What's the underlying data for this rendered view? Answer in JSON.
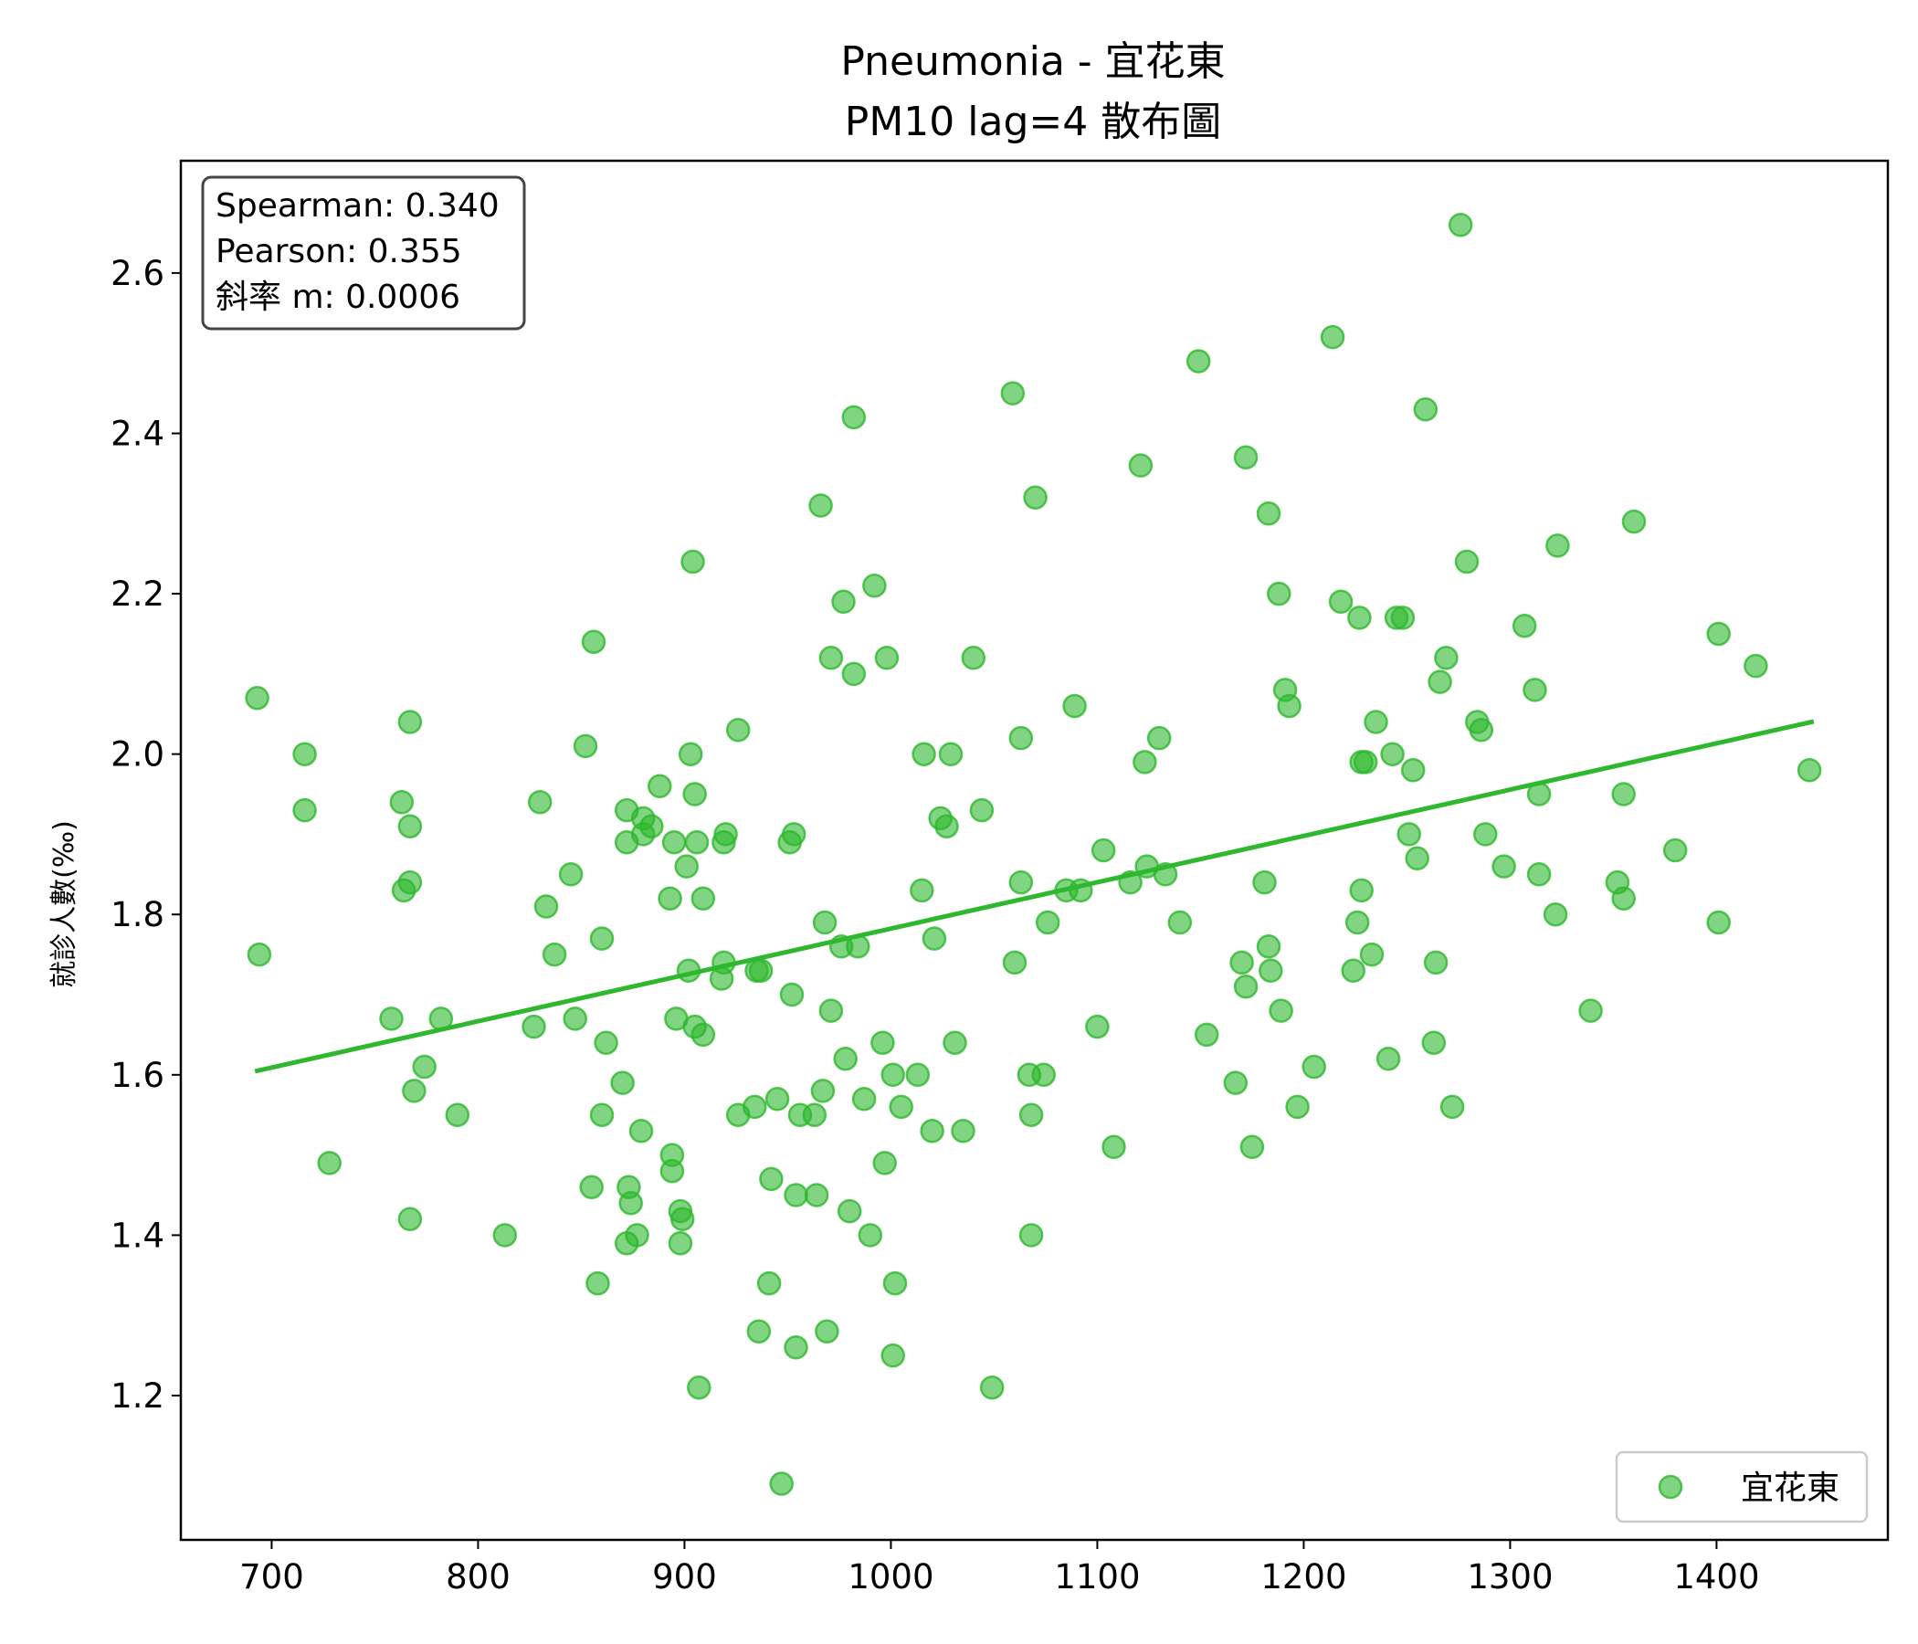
{
  "chart_data": {
    "type": "scatter",
    "title": [
      "Pneumonia - 宜花東",
      "PM10 lag=4 散布圖"
    ],
    "xlabel": "",
    "ylabel": "就診人數(‰)",
    "xlim": [
      656,
      1483
    ],
    "ylim": [
      1.02,
      2.74
    ],
    "x_ticks": [
      700,
      800,
      900,
      1000,
      1100,
      1200,
      1300,
      1400
    ],
    "y_ticks": [
      1.2,
      1.4,
      1.6,
      1.8,
      2.0,
      2.2,
      2.4,
      2.6
    ],
    "grid": false,
    "legend_position": "bottom-right",
    "stats_box": [
      "Spearman: 0.340",
      "Pearson: 0.355",
      "斜率 m: 0.0006"
    ],
    "colors": {
      "points": "#2db82d",
      "line": "#2db82d"
    },
    "regression_line": {
      "x": [
        693,
        1446
      ],
      "y": [
        1.605,
        2.04
      ]
    },
    "series": [
      {
        "name": "宜花東",
        "points": [
          [
            693,
            2.07
          ],
          [
            694,
            1.75
          ],
          [
            716,
            2.0
          ],
          [
            716,
            1.93
          ],
          [
            728,
            1.49
          ],
          [
            758,
            1.67
          ],
          [
            763,
            1.94
          ],
          [
            764,
            1.83
          ],
          [
            767,
            1.91
          ],
          [
            767,
            1.84
          ],
          [
            767,
            2.04
          ],
          [
            767,
            1.42
          ],
          [
            769,
            1.58
          ],
          [
            774,
            1.61
          ],
          [
            782,
            1.67
          ],
          [
            790,
            1.55
          ],
          [
            813,
            1.4
          ],
          [
            827,
            1.66
          ],
          [
            830,
            1.94
          ],
          [
            833,
            1.81
          ],
          [
            837,
            1.75
          ],
          [
            845,
            1.85
          ],
          [
            847,
            1.67
          ],
          [
            852,
            2.01
          ],
          [
            855,
            1.46
          ],
          [
            856,
            2.14
          ],
          [
            858,
            1.34
          ],
          [
            860,
            1.77
          ],
          [
            860,
            1.55
          ],
          [
            862,
            1.64
          ],
          [
            870,
            1.59
          ],
          [
            872,
            1.93
          ],
          [
            872,
            1.89
          ],
          [
            872,
            1.39
          ],
          [
            873,
            1.46
          ],
          [
            874,
            1.44
          ],
          [
            877,
            1.4
          ],
          [
            879,
            1.53
          ],
          [
            880,
            1.9
          ],
          [
            880,
            1.92
          ],
          [
            884,
            1.91
          ],
          [
            888,
            1.96
          ],
          [
            893,
            1.82
          ],
          [
            894,
            1.5
          ],
          [
            894,
            1.48
          ],
          [
            895,
            1.89
          ],
          [
            896,
            1.67
          ],
          [
            898,
            1.43
          ],
          [
            898,
            1.39
          ],
          [
            899,
            1.42
          ],
          [
            901,
            1.86
          ],
          [
            902,
            1.73
          ],
          [
            903,
            2.0
          ],
          [
            904,
            2.24
          ],
          [
            905,
            1.95
          ],
          [
            905,
            1.66
          ],
          [
            906,
            1.89
          ],
          [
            907,
            1.21
          ],
          [
            909,
            1.65
          ],
          [
            909,
            1.82
          ],
          [
            918,
            1.72
          ],
          [
            919,
            1.74
          ],
          [
            919,
            1.89
          ],
          [
            920,
            1.9
          ],
          [
            926,
            2.03
          ],
          [
            926,
            1.55
          ],
          [
            934,
            1.56
          ],
          [
            935,
            1.73
          ],
          [
            936,
            1.28
          ],
          [
            937,
            1.73
          ],
          [
            941,
            1.34
          ],
          [
            942,
            1.47
          ],
          [
            945,
            1.57
          ],
          [
            947,
            1.09
          ],
          [
            951,
            1.89
          ],
          [
            952,
            1.7
          ],
          [
            953,
            1.9
          ],
          [
            954,
            1.26
          ],
          [
            954,
            1.45
          ],
          [
            956,
            1.55
          ],
          [
            963,
            1.55
          ],
          [
            964,
            1.45
          ],
          [
            966,
            2.31
          ],
          [
            967,
            1.58
          ],
          [
            968,
            1.79
          ],
          [
            969,
            1.28
          ],
          [
            971,
            2.12
          ],
          [
            971,
            1.68
          ],
          [
            976,
            1.76
          ],
          [
            977,
            2.19
          ],
          [
            978,
            1.62
          ],
          [
            980,
            1.43
          ],
          [
            982,
            2.42
          ],
          [
            982,
            2.1
          ],
          [
            984,
            1.76
          ],
          [
            987,
            1.57
          ],
          [
            990,
            1.4
          ],
          [
            992,
            2.21
          ],
          [
            996,
            1.64
          ],
          [
            997,
            1.49
          ],
          [
            998,
            2.12
          ],
          [
            1001,
            1.6
          ],
          [
            1001,
            1.25
          ],
          [
            1002,
            1.34
          ],
          [
            1005,
            1.56
          ],
          [
            1013,
            1.6
          ],
          [
            1015,
            1.83
          ],
          [
            1016,
            2.0
          ],
          [
            1020,
            1.53
          ],
          [
            1021,
            1.77
          ],
          [
            1024,
            1.92
          ],
          [
            1027,
            1.91
          ],
          [
            1029,
            2.0
          ],
          [
            1031,
            1.64
          ],
          [
            1035,
            1.53
          ],
          [
            1040,
            2.12
          ],
          [
            1044,
            1.93
          ],
          [
            1049,
            1.21
          ],
          [
            1059,
            2.45
          ],
          [
            1060,
            1.74
          ],
          [
            1063,
            2.02
          ],
          [
            1063,
            1.84
          ],
          [
            1067,
            1.6
          ],
          [
            1068,
            1.55
          ],
          [
            1068,
            1.4
          ],
          [
            1070,
            2.32
          ],
          [
            1074,
            1.6
          ],
          [
            1076,
            1.79
          ],
          [
            1085,
            1.83
          ],
          [
            1089,
            2.06
          ],
          [
            1092,
            1.83
          ],
          [
            1100,
            1.66
          ],
          [
            1103,
            1.88
          ],
          [
            1108,
            1.51
          ],
          [
            1116,
            1.84
          ],
          [
            1121,
            2.36
          ],
          [
            1123,
            1.99
          ],
          [
            1124,
            1.86
          ],
          [
            1130,
            2.02
          ],
          [
            1133,
            1.85
          ],
          [
            1140,
            1.79
          ],
          [
            1149,
            2.49
          ],
          [
            1153,
            1.65
          ],
          [
            1167,
            1.59
          ],
          [
            1170,
            1.74
          ],
          [
            1172,
            2.37
          ],
          [
            1172,
            1.71
          ],
          [
            1175,
            1.51
          ],
          [
            1181,
            1.84
          ],
          [
            1183,
            1.76
          ],
          [
            1183,
            2.3
          ],
          [
            1184,
            1.73
          ],
          [
            1188,
            2.2
          ],
          [
            1189,
            1.68
          ],
          [
            1191,
            2.08
          ],
          [
            1193,
            2.06
          ],
          [
            1197,
            1.56
          ],
          [
            1205,
            1.61
          ],
          [
            1214,
            2.52
          ],
          [
            1218,
            2.19
          ],
          [
            1224,
            1.73
          ],
          [
            1226,
            1.79
          ],
          [
            1227,
            2.17
          ],
          [
            1228,
            1.99
          ],
          [
            1228,
            1.83
          ],
          [
            1230,
            1.99
          ],
          [
            1233,
            1.75
          ],
          [
            1235,
            2.04
          ],
          [
            1241,
            1.62
          ],
          [
            1243,
            2.0
          ],
          [
            1245,
            2.17
          ],
          [
            1248,
            2.17
          ],
          [
            1251,
            1.9
          ],
          [
            1253,
            1.98
          ],
          [
            1255,
            1.87
          ],
          [
            1259,
            2.43
          ],
          [
            1263,
            1.64
          ],
          [
            1264,
            1.74
          ],
          [
            1266,
            2.09
          ],
          [
            1269,
            2.12
          ],
          [
            1272,
            1.56
          ],
          [
            1276,
            2.66
          ],
          [
            1279,
            2.24
          ],
          [
            1284,
            2.04
          ],
          [
            1286,
            2.03
          ],
          [
            1288,
            1.9
          ],
          [
            1297,
            1.86
          ],
          [
            1307,
            2.16
          ],
          [
            1312,
            2.08
          ],
          [
            1314,
            1.95
          ],
          [
            1314,
            1.85
          ],
          [
            1322,
            1.8
          ],
          [
            1323,
            2.26
          ],
          [
            1339,
            1.68
          ],
          [
            1352,
            1.84
          ],
          [
            1355,
            1.82
          ],
          [
            1355,
            1.95
          ],
          [
            1360,
            2.29
          ],
          [
            1380,
            1.88
          ],
          [
            1401,
            2.15
          ],
          [
            1401,
            1.79
          ],
          [
            1419,
            2.11
          ],
          [
            1445,
            1.98
          ]
        ]
      }
    ]
  }
}
